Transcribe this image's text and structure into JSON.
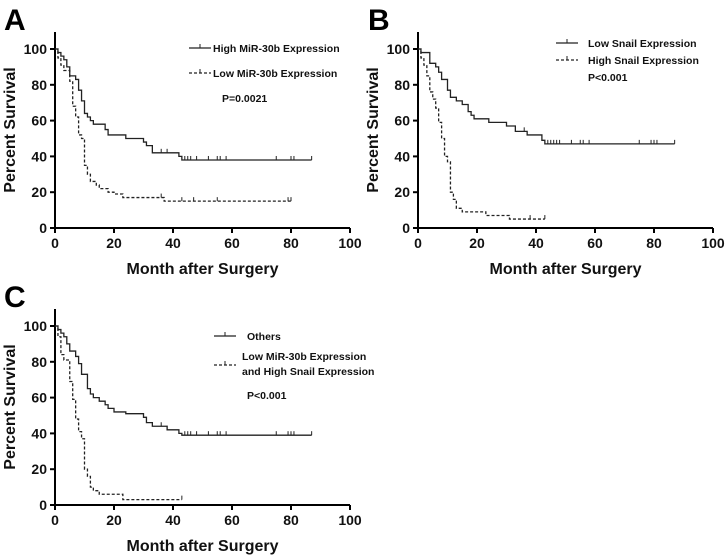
{
  "chart_data": [
    {
      "panel_label": "A",
      "type": "line",
      "subtype": "kaplan-meier step",
      "xlabel": "Month after Surgery",
      "ylabel": "Percent Survival",
      "xlim": [
        0,
        100
      ],
      "ylim": [
        0,
        110
      ],
      "xticks": [
        "0",
        "20",
        "40",
        "60",
        "80",
        "100"
      ],
      "yticks": [
        "0",
        "20",
        "40",
        "60",
        "80",
        "100"
      ],
      "grid": false,
      "legend_position": "top-right",
      "annotation": "P=0.0021",
      "series": [
        {
          "name": "High MiR-30b Expression",
          "style": "solid",
          "steps": [
            [
              0,
              100
            ],
            [
              1,
              98
            ],
            [
              2,
              96
            ],
            [
              3,
              94
            ],
            [
              4,
              90
            ],
            [
              5,
              85
            ],
            [
              7,
              83
            ],
            [
              8,
              77
            ],
            [
              9,
              71
            ],
            [
              10,
              64
            ],
            [
              11,
              62
            ],
            [
              12,
              60
            ],
            [
              13,
              58
            ],
            [
              17,
              55
            ],
            [
              18,
              52
            ],
            [
              24,
              50
            ],
            [
              30,
              48
            ],
            [
              31,
              46
            ],
            [
              33,
              42
            ],
            [
              42,
              40
            ],
            [
              43,
              38
            ],
            [
              87,
              38
            ]
          ],
          "censored": [
            36,
            38,
            44,
            45,
            46,
            48,
            52,
            55,
            56,
            58,
            75,
            80,
            81,
            87
          ]
        },
        {
          "name": "Low MiR-30b Expression",
          "style": "dashed",
          "steps": [
            [
              0,
              100
            ],
            [
              1,
              95
            ],
            [
              2,
              91
            ],
            [
              3,
              88
            ],
            [
              5,
              82
            ],
            [
              6,
              68
            ],
            [
              7,
              62
            ],
            [
              8,
              52
            ],
            [
              9,
              50
            ],
            [
              10,
              35
            ],
            [
              11,
              30
            ],
            [
              12,
              26
            ],
            [
              14,
              24
            ],
            [
              15,
              22
            ],
            [
              18,
              20
            ],
            [
              20,
              19
            ],
            [
              23,
              17
            ],
            [
              37,
              15
            ],
            [
              80,
              15
            ]
          ],
          "censored": [
            36,
            43,
            47,
            55,
            79,
            80
          ]
        }
      ]
    },
    {
      "panel_label": "B",
      "type": "line",
      "subtype": "kaplan-meier step",
      "xlabel": "Month after Surgery",
      "ylabel": "Percent Survival",
      "xlim": [
        0,
        100
      ],
      "ylim": [
        0,
        110
      ],
      "xticks": [
        "0",
        "20",
        "40",
        "60",
        "80",
        "100"
      ],
      "yticks": [
        "0",
        "20",
        "40",
        "60",
        "80",
        "100"
      ],
      "grid": false,
      "legend_position": "top-right",
      "annotation": "P<0.001",
      "series": [
        {
          "name": "Low Snail Expression",
          "style": "solid",
          "steps": [
            [
              0,
              100
            ],
            [
              1,
              98
            ],
            [
              4,
              92
            ],
            [
              6,
              90
            ],
            [
              7,
              87
            ],
            [
              8,
              83
            ],
            [
              10,
              77
            ],
            [
              11,
              73
            ],
            [
              13,
              71
            ],
            [
              15,
              69
            ],
            [
              17,
              65
            ],
            [
              18,
              63
            ],
            [
              19,
              61
            ],
            [
              24,
              59
            ],
            [
              30,
              57
            ],
            [
              33,
              54
            ],
            [
              37,
              52
            ],
            [
              42,
              49
            ],
            [
              43,
              47
            ],
            [
              87,
              47
            ]
          ],
          "censored": [
            36,
            44,
            45,
            46,
            47,
            48,
            52,
            55,
            56,
            58,
            75,
            79,
            80,
            81,
            87
          ]
        },
        {
          "name": "High Snail Expression",
          "style": "dashed",
          "steps": [
            [
              0,
              100
            ],
            [
              1,
              95
            ],
            [
              2,
              91
            ],
            [
              3,
              85
            ],
            [
              4,
              76
            ],
            [
              5,
              72
            ],
            [
              6,
              67
            ],
            [
              7,
              59
            ],
            [
              8,
              50
            ],
            [
              9,
              40
            ],
            [
              10,
              37
            ],
            [
              11,
              20
            ],
            [
              12,
              16
            ],
            [
              13,
              11
            ],
            [
              15,
              9
            ],
            [
              23,
              7
            ],
            [
              31,
              5
            ],
            [
              43,
              5
            ]
          ],
          "censored": [
            38,
            43
          ]
        }
      ]
    },
    {
      "panel_label": "C",
      "type": "line",
      "subtype": "kaplan-meier step",
      "xlabel": "Month after Surgery",
      "ylabel": "Percent Survival",
      "xlim": [
        0,
        100
      ],
      "ylim": [
        0,
        110
      ],
      "xticks": [
        "0",
        "20",
        "40",
        "60",
        "80",
        "100"
      ],
      "yticks": [
        "0",
        "20",
        "40",
        "60",
        "80",
        "100"
      ],
      "grid": false,
      "legend_position": "top-right",
      "annotation": "P<0.001",
      "series": [
        {
          "name": "Others",
          "style": "solid",
          "steps": [
            [
              0,
              100
            ],
            [
              1,
              98
            ],
            [
              2,
              96
            ],
            [
              3,
              94
            ],
            [
              4,
              90
            ],
            [
              5,
              86
            ],
            [
              7,
              83
            ],
            [
              8,
              79
            ],
            [
              9,
              73
            ],
            [
              11,
              65
            ],
            [
              12,
              62
            ],
            [
              13,
              60
            ],
            [
              15,
              58
            ],
            [
              17,
              56
            ],
            [
              18,
              54
            ],
            [
              20,
              52
            ],
            [
              24,
              51
            ],
            [
              30,
              49
            ],
            [
              31,
              46
            ],
            [
              33,
              44
            ],
            [
              38,
              42
            ],
            [
              42,
              40
            ],
            [
              43,
              39
            ],
            [
              87,
              39
            ]
          ],
          "censored": [
            36,
            38,
            44,
            45,
            46,
            48,
            52,
            55,
            56,
            58,
            75,
            79,
            80,
            81,
            87
          ]
        },
        {
          "name": "Low MiR-30b Expression and High Snail Expression",
          "name_lines": [
            "Low MiR-30b Expression",
            "and High Snail Expression"
          ],
          "style": "dashed",
          "steps": [
            [
              0,
              100
            ],
            [
              1,
              94
            ],
            [
              2,
              84
            ],
            [
              3,
              81
            ],
            [
              5,
              69
            ],
            [
              6,
              59
            ],
            [
              7,
              48
            ],
            [
              8,
              41
            ],
            [
              9,
              37
            ],
            [
              10,
              20
            ],
            [
              11,
              16
            ],
            [
              12,
              10
            ],
            [
              13,
              8
            ],
            [
              15,
              6
            ],
            [
              23,
              3
            ],
            [
              43,
              3
            ]
          ],
          "censored": [
            43
          ]
        }
      ]
    }
  ]
}
